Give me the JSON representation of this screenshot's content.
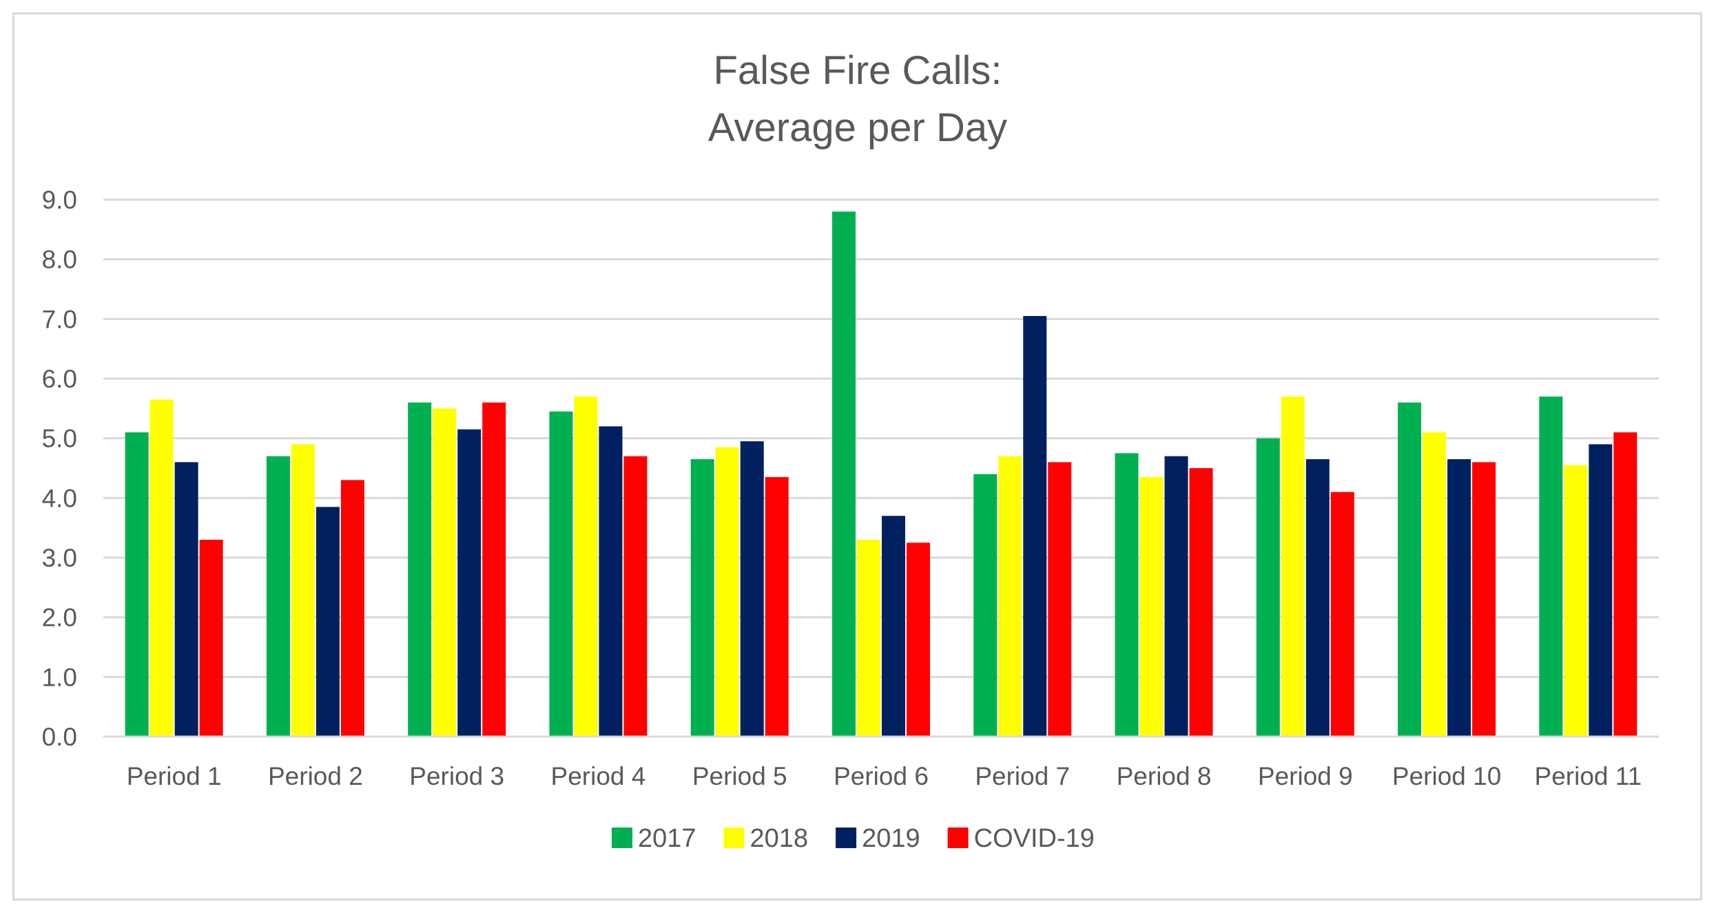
{
  "chart_data": {
    "type": "bar",
    "title_lines": [
      "False Fire Calls:",
      "Average per Day"
    ],
    "xlabel": "",
    "ylabel": "",
    "ylim": [
      0,
      9
    ],
    "yticks": [
      "0.0",
      "1.0",
      "2.0",
      "3.0",
      "4.0",
      "5.0",
      "6.0",
      "7.0",
      "8.0",
      "9.0"
    ],
    "grid": true,
    "legend_position": "bottom",
    "categories": [
      "Period 1",
      "Period 2",
      "Period 3",
      "Period 4",
      "Period 5",
      "Period 6",
      "Period 7",
      "Period 8",
      "Period 9",
      "Period 10",
      "Period 11"
    ],
    "series": [
      {
        "name": "2017",
        "color": "#00b050",
        "values": [
          5.1,
          4.7,
          5.6,
          5.45,
          4.65,
          8.8,
          4.4,
          4.75,
          5.0,
          5.6,
          5.7
        ]
      },
      {
        "name": "2018",
        "color": "#ffff00",
        "values": [
          5.65,
          4.9,
          5.5,
          5.7,
          4.85,
          3.3,
          4.7,
          4.35,
          5.7,
          5.1,
          4.55
        ]
      },
      {
        "name": "2019",
        "color": "#002060",
        "values": [
          4.6,
          3.85,
          5.15,
          5.2,
          4.95,
          3.7,
          7.05,
          4.7,
          4.65,
          4.65,
          4.9
        ]
      },
      {
        "name": "COVID-19",
        "color": "#ff0000",
        "values": [
          3.3,
          4.3,
          5.6,
          4.7,
          4.35,
          3.25,
          4.6,
          4.5,
          4.1,
          4.6,
          5.1
        ]
      }
    ]
  }
}
